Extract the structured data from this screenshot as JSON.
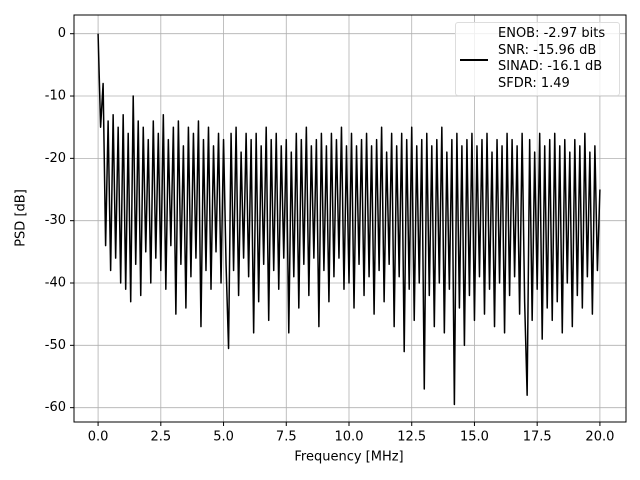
{
  "chart_data": {
    "type": "line",
    "xlabel": "Frequency [MHz]",
    "ylabel": "PSD [dB]",
    "xlim": [
      -0.96,
      21.04
    ],
    "ylim": [
      -62.3,
      3.0
    ],
    "xticks": [
      {
        "value": 0,
        "label": "0.0"
      },
      2.5,
      {
        "value": 5,
        "label": "5.0"
      },
      7.5,
      {
        "value": 10,
        "label": "10.0"
      },
      12.5,
      {
        "value": 15,
        "label": "15.0"
      },
      17.5,
      {
        "value": 20,
        "label": "20.0"
      }
    ],
    "yticks": [
      0,
      -10,
      -20,
      -30,
      -40,
      -50,
      -60
    ],
    "grid": true,
    "legend": "upper right",
    "x": [
      0,
      0.1,
      0.2,
      0.3,
      0.4,
      0.5,
      0.6,
      0.7,
      0.8,
      0.9,
      1,
      1.1,
      1.2,
      1.3,
      1.4,
      1.5,
      1.6,
      1.7,
      1.8,
      1.9,
      2,
      2.1,
      2.2,
      2.3,
      2.4,
      2.5,
      2.6,
      2.7,
      2.8,
      2.9,
      3,
      3.1,
      3.2,
      3.3,
      3.4,
      3.5,
      3.6,
      3.7,
      3.8,
      3.9,
      4,
      4.1,
      4.2,
      4.3,
      4.4,
      4.5,
      4.6,
      4.7,
      4.8,
      4.9,
      5,
      5.1,
      5.2,
      5.3,
      5.4,
      5.5,
      5.6,
      5.7,
      5.8,
      5.9,
      6,
      6.1,
      6.2,
      6.3,
      6.4,
      6.5,
      6.6,
      6.7,
      6.8,
      6.9,
      7,
      7.1,
      7.2,
      7.3,
      7.4,
      7.5,
      7.6,
      7.7,
      7.8,
      7.9,
      8,
      8.1,
      8.2,
      8.3,
      8.4,
      8.5,
      8.6,
      8.7,
      8.8,
      8.9,
      9,
      9.1,
      9.2,
      9.3,
      9.4,
      9.5,
      9.6,
      9.7,
      9.8,
      9.9,
      10,
      10.1,
      10.2,
      10.3,
      10.4,
      10.5,
      10.6,
      10.7,
      10.8,
      10.9,
      11,
      11.1,
      11.2,
      11.3,
      11.4,
      11.5,
      11.6,
      11.7,
      11.8,
      11.9,
      12,
      12.1,
      12.2,
      12.3,
      12.4,
      12.5,
      12.6,
      12.7,
      12.8,
      12.9,
      13,
      13.1,
      13.2,
      13.3,
      13.4,
      13.5,
      13.6,
      13.7,
      13.8,
      13.9,
      14,
      14.1,
      14.2,
      14.3,
      14.4,
      14.5,
      14.6,
      14.7,
      14.8,
      14.9,
      15,
      15.1,
      15.2,
      15.3,
      15.4,
      15.5,
      15.6,
      15.7,
      15.8,
      15.9,
      16,
      16.1,
      16.2,
      16.3,
      16.4,
      16.5,
      16.6,
      16.7,
      16.8,
      16.9,
      17,
      17.1,
      17.2,
      17.3,
      17.4,
      17.5,
      17.6,
      17.7,
      17.8,
      17.9,
      18,
      18.1,
      18.2,
      18.3,
      18.4,
      18.5,
      18.6,
      18.7,
      18.8,
      18.9,
      19,
      19.1,
      19.2,
      19.3,
      19.4,
      19.5,
      19.6,
      19.7,
      19.8,
      19.9,
      20
    ],
    "series": [
      {
        "name": "ENOB: -2.97 bits\nSNR: -15.96 dB\nSINAD: -16.1 dB\nSFDR: 1.49",
        "color": "#000000",
        "values": [
          0,
          -15,
          -8,
          -34,
          -14,
          -38,
          -13,
          -36,
          -15,
          -40,
          -13,
          -41,
          -16,
          -43,
          -10,
          -37,
          -14,
          -42,
          -15,
          -35,
          -17,
          -40,
          -14,
          -36,
          -16,
          -38,
          -13,
          -41,
          -17,
          -34,
          -15,
          -45,
          -14,
          -37,
          -18,
          -44,
          -15,
          -39,
          -16,
          -36,
          -14,
          -47,
          -17,
          -38,
          -15,
          -41,
          -18,
          -35,
          -16,
          -40,
          -17,
          -37,
          -50.5,
          -16,
          -38,
          -15,
          -42,
          -19,
          -36,
          -16,
          -39,
          -17,
          -48,
          -16,
          -43,
          -18,
          -37,
          -15,
          -46,
          -17,
          -38,
          -16,
          -41,
          -18,
          -36,
          -17,
          -48,
          -19,
          -39,
          -16,
          -44,
          -17,
          -37,
          -15,
          -42,
          -18,
          -36,
          -17,
          -47,
          -16,
          -38,
          -18,
          -43,
          -16,
          -39,
          -17,
          -36,
          -15,
          -41,
          -18,
          -40,
          -16,
          -44,
          -18,
          -37,
          -17,
          -42,
          -16,
          -39,
          -18,
          -45,
          -17,
          -38,
          -15,
          -43,
          -19,
          -37,
          -16,
          -47,
          -18,
          -39,
          -16,
          -51,
          -17,
          -41,
          -15,
          -46,
          -18,
          -40,
          -17,
          -57,
          -16,
          -42,
          -18,
          -47,
          -17,
          -40,
          -15,
          -48,
          -19,
          -41,
          -17,
          -59.5,
          -16,
          -44,
          -18,
          -50,
          -17,
          -42,
          -16,
          -46,
          -18,
          -39,
          -17,
          -45,
          -16,
          -41,
          -19,
          -47,
          -17,
          -40,
          -18,
          -48,
          -16,
          -42,
          -17,
          -39,
          -18,
          -45,
          -16,
          -43,
          -58,
          -17,
          -46,
          -19,
          -41,
          -16,
          -49,
          -18,
          -44,
          -17,
          -46,
          -16,
          -43,
          -18,
          -48,
          -17,
          -40,
          -19,
          -47,
          -17,
          -42,
          -18,
          -44,
          -16,
          -39,
          -19,
          -45,
          -18,
          -38,
          -25
        ]
      }
    ]
  }
}
